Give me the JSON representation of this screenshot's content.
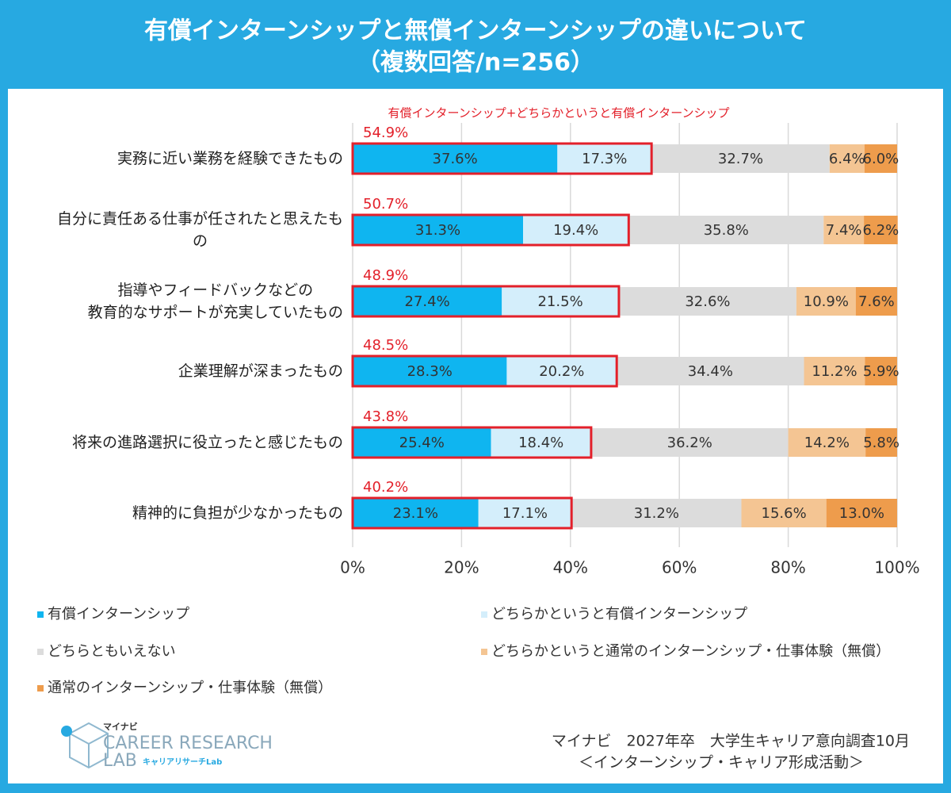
{
  "chart_data": {
    "type": "stacked-bar-horizontal",
    "title": "有償インターンシップと無償インターンシップの違いについて",
    "subtitle": "（複数回答/n=256）",
    "categories": [
      "実務に近い業務を経験できたもの",
      "自分に責任ある仕事が任されたと思えたも\nの",
      "指導やフィードバックなどの\n教育的なサポートが充実していたもの",
      "企業理解が深まったもの",
      "将来の進路選択に役立ったと感じたもの",
      "精神的に負担が少なかったもの"
    ],
    "series": [
      {
        "name": "有償インターンシップ",
        "color": "#0fb5f0",
        "values": [
          37.6,
          31.3,
          27.4,
          28.3,
          25.4,
          23.1
        ],
        "value_labels": [
          "37.6%",
          "31.3%",
          "27.4%",
          "28.3%",
          "25.4%",
          "23.1%"
        ]
      },
      {
        "name": "どちらかというと有償インターンシップ",
        "color": "#d4eefb",
        "values": [
          17.3,
          19.4,
          21.5,
          20.2,
          18.4,
          17.1
        ],
        "value_labels": [
          "17.3%",
          "19.4%",
          "21.5%",
          "20.2%",
          "18.4%",
          "17.1%"
        ]
      },
      {
        "name": "どちらともいえない",
        "color": "#dcdcdc",
        "values": [
          32.7,
          35.8,
          32.6,
          34.4,
          36.2,
          31.2
        ],
        "value_labels": [
          "32.7%",
          "35.8%",
          "32.6%",
          "34.4%",
          "36.2%",
          "31.2%"
        ]
      },
      {
        "name": "どちらかというと通常のインターンシップ・仕事体験（無償）",
        "color": "#f4c593",
        "values": [
          6.4,
          7.4,
          10.9,
          11.2,
          14.2,
          15.6
        ],
        "value_labels": [
          "6.4%",
          "7.4%",
          "10.9%",
          "11.2%",
          "14.2%",
          "15.6%"
        ]
      },
      {
        "name": "通常のインターンシップ・仕事体験（無償）",
        "color": "#ee9c4c",
        "values": [
          6.0,
          6.2,
          7.6,
          5.9,
          5.8,
          13.0
        ],
        "value_labels": [
          "6.0%",
          "6.2%",
          "7.6%",
          "5.9%",
          "5.8%",
          "13.0%"
        ]
      }
    ],
    "highlight": {
      "label": "有償インターンシップ+どちらかというと有償インターンシップ",
      "color": "#e3202a",
      "values": [
        54.9,
        50.7,
        48.9,
        48.5,
        43.8,
        40.2
      ],
      "value_labels": [
        "54.9%",
        "50.7%",
        "48.9%",
        "48.5%",
        "43.8%",
        "40.2%"
      ]
    },
    "xlim": [
      0,
      100
    ],
    "xticks": [
      {
        "value": 0,
        "label": "0%"
      },
      {
        "value": 20,
        "label": "20%"
      },
      {
        "value": 40,
        "label": "40%"
      },
      {
        "value": 60,
        "label": "60%"
      },
      {
        "value": 80,
        "label": "80%"
      },
      {
        "value": 100,
        "label": "100%"
      }
    ],
    "grid": true
  },
  "footer": {
    "logo": {
      "brand": "マイナビ",
      "line1": "CAREER RESEARCH",
      "line2": "LAB",
      "sub": "キャリアリサーチLab"
    },
    "source": [
      "マイナビ　2027年卒　大学生キャリア意向調査10月",
      "＜インターンシップ・キャリア形成活動＞"
    ]
  }
}
